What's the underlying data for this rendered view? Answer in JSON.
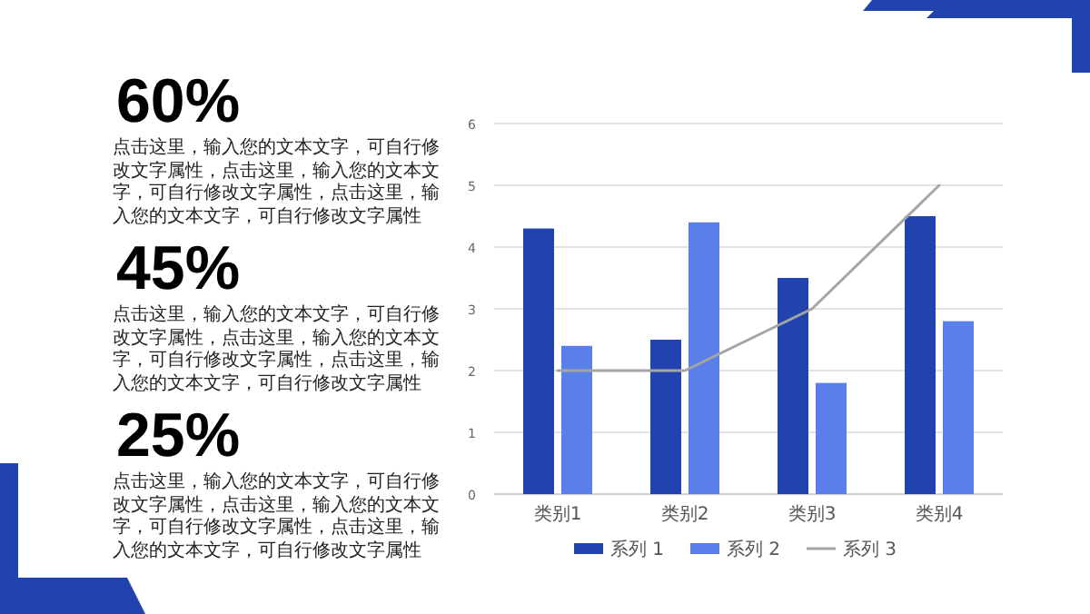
{
  "chart_data": {
    "type": "bar",
    "categories": [
      "类别1",
      "类别2",
      "类别3",
      "类别4"
    ],
    "series": [
      {
        "name": "系列 1",
        "color": "#2143ad",
        "values": [
          4.3,
          2.5,
          3.5,
          4.5
        ]
      },
      {
        "name": "系列 2",
        "color": "#5b7fe8",
        "values": [
          2.4,
          4.4,
          1.8,
          2.8
        ]
      },
      {
        "name": "系列 3",
        "color": "#a5a5a5",
        "type": "line",
        "values": [
          2,
          2,
          3,
          5
        ]
      }
    ],
    "ylim": [
      0,
      6
    ],
    "yticks": [
      0,
      1,
      2,
      3,
      4,
      5,
      6
    ],
    "grid": "y",
    "legend": "bottom",
    "annotations": [
      "60%",
      "点击这里，输入您的文本文字，可自行修改文字属性，点击这里，输入您的文本文字，可自行修改文字属性，点击这里，输入您的文本文字，可自行修改文字属性",
      "45%",
      "点击这里，输入您的文本文字，可自行修改文字属性，点击这里，输入您的文本文字，可自行修改文字属性，点击这里，输入您的文本文字，可自行修改文字属性",
      "25%",
      "点击这里，输入您的文本文字，可自行修改文字属性，点击这里，输入您的文本文字，可自行修改文字属性，点击这里，输入您的文本文字，可自行修改文字属性"
    ]
  }
}
